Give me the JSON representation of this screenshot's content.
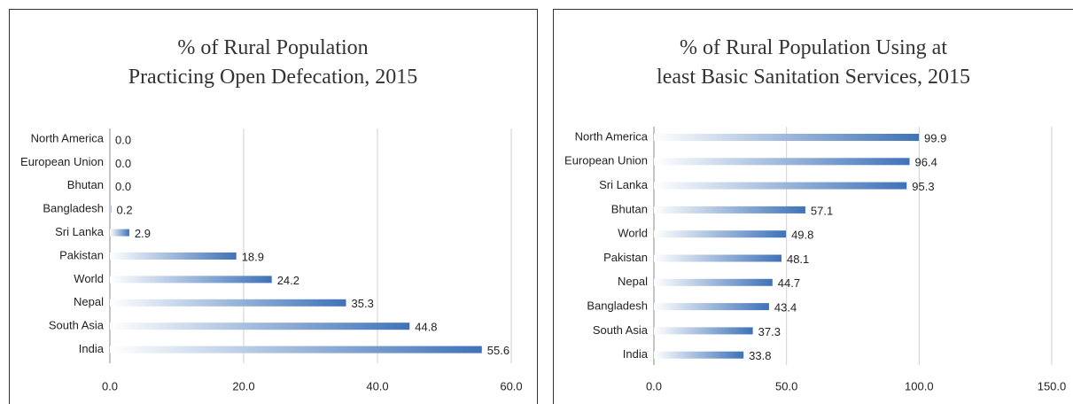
{
  "chart_data": [
    {
      "type": "bar",
      "orientation": "horizontal",
      "title": "% of Rural Population\nPracticing Open Defecation, 2015",
      "categories": [
        "North America",
        "European Union",
        "Bhutan",
        "Bangladesh",
        "Sri Lanka",
        "Pakistan",
        "World",
        "Nepal",
        "South Asia",
        "India"
      ],
      "values": [
        0.0,
        0.0,
        0.0,
        0.2,
        2.9,
        18.9,
        24.2,
        35.3,
        44.8,
        55.6
      ],
      "value_labels": [
        "0.0",
        "0.0",
        "0.0",
        "0.2",
        "2.9",
        "18.9",
        "24.2",
        "35.3",
        "44.8",
        "55.6"
      ],
      "value_label_colors": [
        "#222",
        "#222",
        "#222",
        "#222",
        "#222",
        "#222",
        "#222",
        "#222",
        "#222",
        "#e02b2b"
      ],
      "color": "#3e72b8",
      "xlim": [
        0,
        60
      ],
      "xticks": [
        {
          "value": 0,
          "label": "0.0"
        },
        {
          "value": 20,
          "label": "20.0"
        },
        {
          "value": 40,
          "label": "40.0"
        },
        {
          "value": 60,
          "label": "60.0"
        }
      ],
      "grid": true
    },
    {
      "type": "bar",
      "orientation": "horizontal",
      "title": "% of Rural Population Using at\nleast Basic Sanitation Services, 2015",
      "categories": [
        "North America",
        "European Union",
        "Sri Lanka",
        "Bhutan",
        "World",
        "Pakistan",
        "Nepal",
        "Bangladesh",
        "South Asia",
        "India"
      ],
      "values": [
        99.9,
        96.4,
        95.3,
        57.1,
        49.8,
        48.1,
        44.7,
        43.4,
        37.3,
        33.8
      ],
      "value_labels": [
        "99.9",
        "96.4",
        "95.3",
        "57.1",
        "49.8",
        "48.1",
        "44.7",
        "43.4",
        "37.3",
        "33.8"
      ],
      "value_label_colors": [
        "#222",
        "#222",
        "#222",
        "#222",
        "#222",
        "#222",
        "#222",
        "#222",
        "#222",
        "#e02b2b"
      ],
      "color": "#3e72b8",
      "xlim": [
        0,
        150
      ],
      "xticks": [
        {
          "value": 0,
          "label": "0.0"
        },
        {
          "value": 50,
          "label": "50.0"
        },
        {
          "value": 100,
          "label": "100.0"
        },
        {
          "value": 150,
          "label": "150.0"
        }
      ],
      "grid": true
    }
  ]
}
